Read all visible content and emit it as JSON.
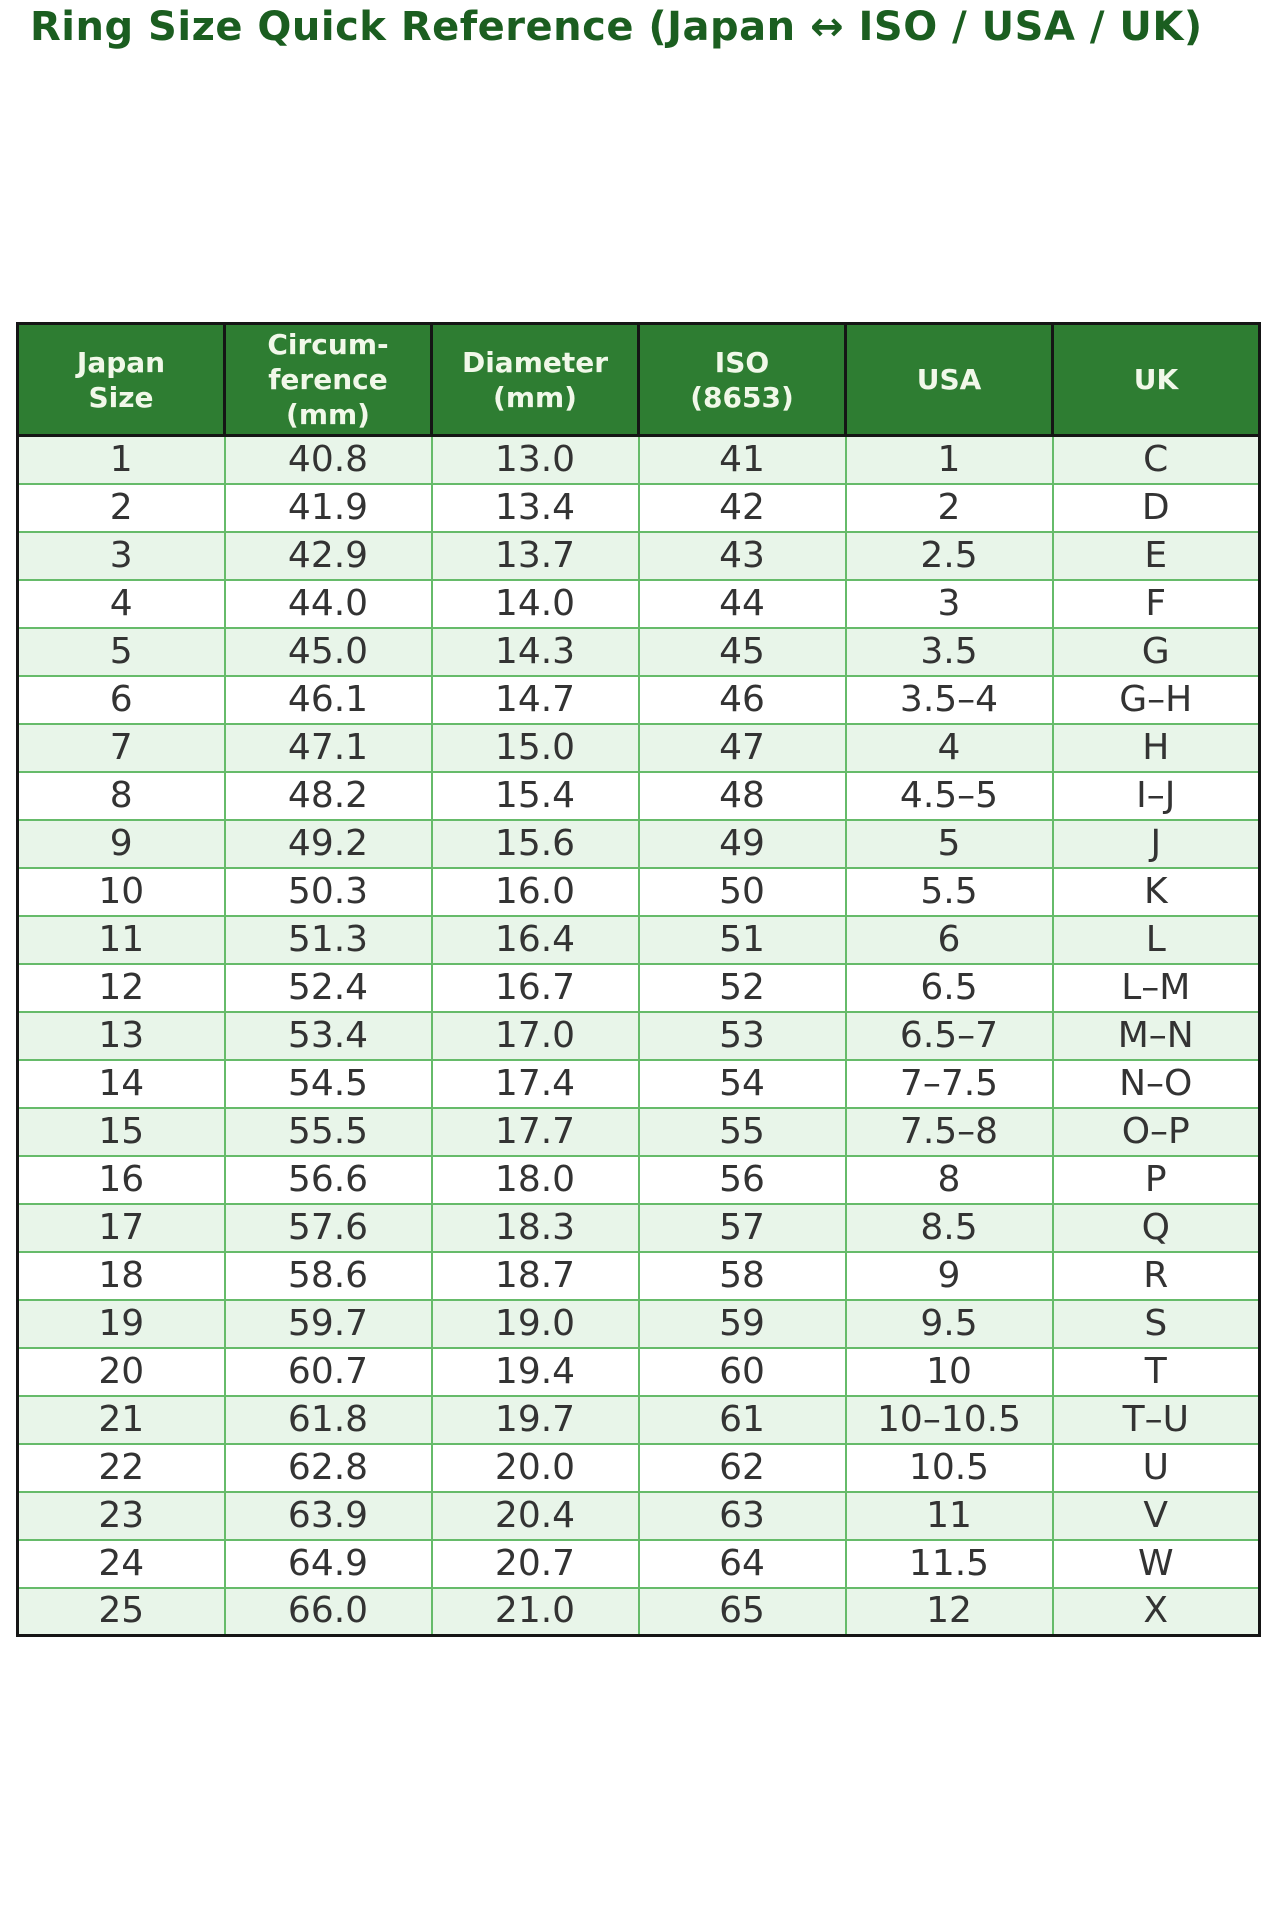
{
  "title": "Ring Size Quick Reference (Japan ↔ ISO / USA / UK)",
  "chart_data": {
    "type": "table",
    "title": "Ring Size Quick Reference (Japan ↔ ISO / USA / UK)",
    "columns": [
      "Japan Size",
      "Circumference (mm)",
      "Diameter (mm)",
      "ISO (8653)",
      "USA",
      "UK"
    ],
    "column_display": [
      "Japan\nSize",
      "Circum-\nference\n(mm)",
      "Diameter\n(mm)",
      "ISO\n(8653)",
      "USA",
      "UK"
    ],
    "rows": [
      [
        "1",
        "40.8",
        "13.0",
        "41",
        "1",
        "C"
      ],
      [
        "2",
        "41.9",
        "13.4",
        "42",
        "2",
        "D"
      ],
      [
        "3",
        "42.9",
        "13.7",
        "43",
        "2.5",
        "E"
      ],
      [
        "4",
        "44.0",
        "14.0",
        "44",
        "3",
        "F"
      ],
      [
        "5",
        "45.0",
        "14.3",
        "45",
        "3.5",
        "G"
      ],
      [
        "6",
        "46.1",
        "14.7",
        "46",
        "3.5–4",
        "G–H"
      ],
      [
        "7",
        "47.1",
        "15.0",
        "47",
        "4",
        "H"
      ],
      [
        "8",
        "48.2",
        "15.4",
        "48",
        "4.5–5",
        "I–J"
      ],
      [
        "9",
        "49.2",
        "15.6",
        "49",
        "5",
        "J"
      ],
      [
        "10",
        "50.3",
        "16.0",
        "50",
        "5.5",
        "K"
      ],
      [
        "11",
        "51.3",
        "16.4",
        "51",
        "6",
        "L"
      ],
      [
        "12",
        "52.4",
        "16.7",
        "52",
        "6.5",
        "L–M"
      ],
      [
        "13",
        "53.4",
        "17.0",
        "53",
        "6.5–7",
        "M–N"
      ],
      [
        "14",
        "54.5",
        "17.4",
        "54",
        "7–7.5",
        "N–O"
      ],
      [
        "15",
        "55.5",
        "17.7",
        "55",
        "7.5–8",
        "O–P"
      ],
      [
        "16",
        "56.6",
        "18.0",
        "56",
        "8",
        "P"
      ],
      [
        "17",
        "57.6",
        "18.3",
        "57",
        "8.5",
        "Q"
      ],
      [
        "18",
        "58.6",
        "18.7",
        "58",
        "9",
        "R"
      ],
      [
        "19",
        "59.7",
        "19.0",
        "59",
        "9.5",
        "S"
      ],
      [
        "20",
        "60.7",
        "19.4",
        "60",
        "10",
        "T"
      ],
      [
        "21",
        "61.8",
        "19.7",
        "61",
        "10–10.5",
        "T–U"
      ],
      [
        "22",
        "62.8",
        "20.0",
        "62",
        "10.5",
        "U"
      ],
      [
        "23",
        "63.9",
        "20.4",
        "63",
        "11",
        "V"
      ],
      [
        "24",
        "64.9",
        "20.7",
        "64",
        "11.5",
        "W"
      ],
      [
        "25",
        "66.0",
        "21.0",
        "65",
        "12",
        "X"
      ]
    ],
    "layout": {
      "striped_rows": "odd rows light green, even rows white",
      "legend": "none",
      "grid": "on"
    }
  },
  "colors": {
    "title_color": "#1b5e20",
    "header_bg": "#2e7d32",
    "header_text": "#f1f8e9",
    "stripe": "#e8f5e9",
    "row_even": "#ffffff",
    "row_border": "#66bb6a",
    "outer_border": "#151515",
    "body_text": "#333333"
  }
}
